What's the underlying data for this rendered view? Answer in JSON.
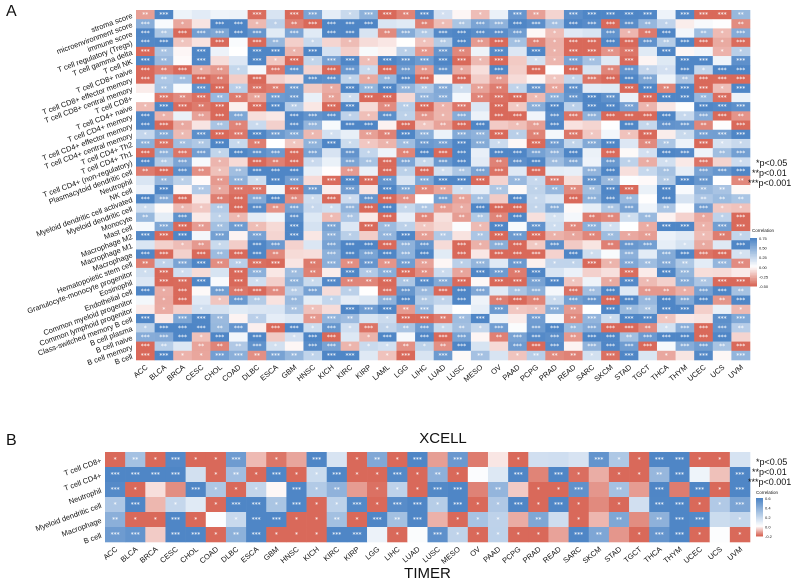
{
  "panels": {
    "a_label": "A",
    "b_label": "B"
  },
  "legend": {
    "sig1": "*p<0.05",
    "sig2": "**p<0.01",
    "sig3": "***p<0.001",
    "colorbar_title": "Correlation"
  },
  "colors": {
    "positive": "#4f86c6",
    "negative": "#d9695a",
    "neutral": "#ffffff"
  },
  "chart_data": [
    {
      "type": "heatmap",
      "title": "",
      "xlabel": "XCELL",
      "ylabel": "",
      "x": [
        "ACC",
        "BLCA",
        "BRCA",
        "CESC",
        "CHOL",
        "COAD",
        "DLBC",
        "ESCA",
        "GBM",
        "HNSC",
        "KICH",
        "KIRC",
        "KIRP",
        "LAML",
        "LGG",
        "LIHC",
        "LUAD",
        "LUSC",
        "MESO",
        "OV",
        "PAAD",
        "PCPG",
        "PRAD",
        "READ",
        "SARC",
        "SKCM",
        "STAD",
        "TGCT",
        "THCA",
        "THYM",
        "UCEC",
        "UCS",
        "UVM"
      ],
      "y": [
        "stroma score",
        "microenvironment score",
        "immune score",
        "T cell regulatory (Tregs)",
        "T cell gamma delta",
        "T cell NK",
        "T cell CD8+ naive",
        "T cell CD8+ effector memory",
        "T cell CD8+ central memory",
        "T cell CD8+",
        "T cell CD4+ naive",
        "T cell CD4+ memory",
        "T cell CD4+ effector memory",
        "T cell CD4+ central memory",
        "T cell CD4+ Th2",
        "T cell CD4+ Th1",
        "T cell CD4+ (non-regulatory)",
        "Plasmacytoid dendritic cell",
        "Neutrophil",
        "NK cell",
        "Myeloid dendritic cell activated",
        "Myeloid dendritic cell",
        "Monocyte",
        "Mast cell",
        "Macrophage M2",
        "Macrophage M1",
        "Macrophage",
        "Hematopoietic stem cell",
        "Granulocyte-monocyte progenitor",
        "Eosinophil",
        "Endothelial cell",
        "Common myeloid progenitor",
        "Common lymphoid progenitor",
        "Class-switched memory B cell",
        "B cell plasma",
        "B cell naive",
        "B cell memory",
        "B cell"
      ],
      "colorbar": {
        "ticks": [
          "0.75",
          "0.50",
          "0.25",
          "0.00",
          "-0.25",
          "-0.50"
        ],
        "range": [
          -0.5,
          0.75
        ]
      },
      "significance": [
        "*",
        "**",
        "***"
      ]
    },
    {
      "type": "heatmap",
      "title": "",
      "xlabel": "TIMER",
      "ylabel": "",
      "x": [
        "ACC",
        "BLCA",
        "BRCA",
        "CESC",
        "CHOL",
        "COAD",
        "DLBC",
        "ESCA",
        "GBM",
        "HNSC",
        "KICH",
        "KIRC",
        "KIRP",
        "LGG",
        "LIHC",
        "LUAD",
        "LUSC",
        "MESO",
        "OV",
        "PAAD",
        "PCPG",
        "PRAD",
        "READ",
        "SARC",
        "SKCM",
        "STAD",
        "TGCT",
        "THCA",
        "THYM",
        "UCEC",
        "UCS",
        "UVM"
      ],
      "y": [
        "T cell CD8+",
        "T cell CD4+",
        "Neutrophil",
        "Myeloid dendritic cell",
        "Macrophage",
        "B cell"
      ],
      "colorbar": {
        "ticks": [
          "0.6",
          "0.4",
          "0.2",
          "0.0",
          "-0.2"
        ],
        "range": [
          -0.2,
          0.6
        ]
      },
      "significance": [
        "*",
        "**",
        "***"
      ]
    }
  ]
}
